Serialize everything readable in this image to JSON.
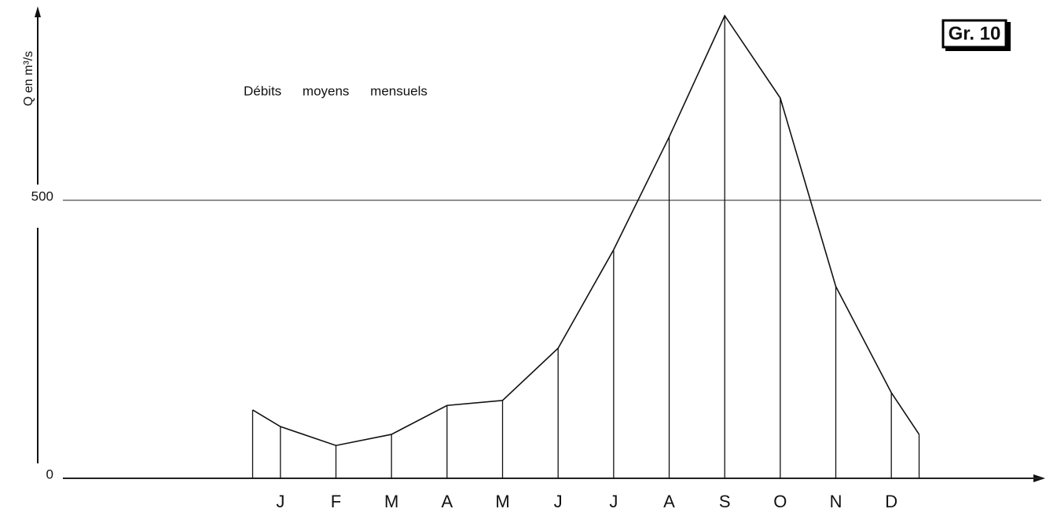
{
  "chart_data": {
    "type": "line",
    "title": "Débits moyens mensuels",
    "y_label": "Q en m³/s",
    "badge": "Gr. 10",
    "x": [
      0,
      0.5,
      1.5,
      2.5,
      3.5,
      4.5,
      5.5,
      6.5,
      7.5,
      8.5,
      9.5,
      10.5,
      11.5,
      12
    ],
    "series": [
      {
        "name": "Q",
        "color": "#111111",
        "values": [
          123,
          93,
          59,
          79,
          131,
          140,
          234,
          411,
          614,
          832,
          684,
          345,
          154,
          79
        ]
      }
    ],
    "xlim": [
      -3.7,
      14.2
    ],
    "xticks": [
      {
        "value": 0.5,
        "label": "J"
      },
      {
        "value": 1.5,
        "label": "F"
      },
      {
        "value": 2.5,
        "label": "M"
      },
      {
        "value": 3.5,
        "label": "A"
      },
      {
        "value": 4.5,
        "label": "M"
      },
      {
        "value": 5.5,
        "label": "J"
      },
      {
        "value": 6.5,
        "label": "J"
      },
      {
        "value": 7.5,
        "label": "A"
      },
      {
        "value": 8.5,
        "label": "S"
      },
      {
        "value": 9.5,
        "label": "O"
      },
      {
        "value": 10.5,
        "label": "N"
      },
      {
        "value": 11.5,
        "label": "D"
      }
    ],
    "ylim": [
      0,
      830
    ],
    "yticks": [
      0,
      500
    ],
    "grid": true,
    "drop_lines": true
  }
}
